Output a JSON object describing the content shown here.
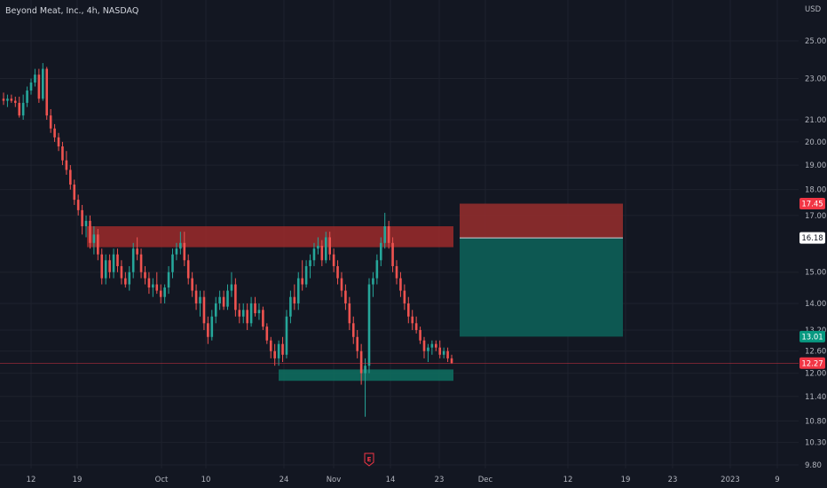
{
  "header": {
    "title": "Beyond Meat, Inc., 4h, NASDAQ",
    "currency": "USD"
  },
  "colors": {
    "up": "#26a69a",
    "down": "#ef5350",
    "background": "#131722",
    "zone_red": "#b71c1c",
    "zone_green": "#00796b",
    "badge_red": "#f23645",
    "badge_green": "#089981",
    "badge_white": "#ffffff"
  },
  "chart_data": {
    "type": "candlestick",
    "title": "Beyond Meat, Inc., 4h, NASDAQ",
    "y_scale": "log",
    "ylim": [
      9.7,
      28.5
    ],
    "y_ticks": [
      "25.00",
      "23.00",
      "21.00",
      "20.00",
      "19.00",
      "18.00",
      "17.00",
      "15.00",
      "14.00",
      "13.20",
      "12.60",
      "12.00",
      "11.40",
      "10.80",
      "10.30",
      "9.80"
    ],
    "x_ticks": [
      "12",
      "19",
      "Oct",
      "10",
      "24",
      "Nov",
      "14",
      "23",
      "Dec",
      "12",
      "19",
      "23",
      "2023",
      "9"
    ],
    "price_badges": [
      {
        "value": "17.45",
        "style": "red"
      },
      {
        "value": "16.18",
        "style": "white"
      },
      {
        "value": "13.01",
        "style": "green"
      },
      {
        "value": "12.27",
        "style": "red"
      }
    ],
    "last_price": 12.27,
    "earnings_marker": "E",
    "zones": [
      {
        "name": "resistance",
        "low": 15.85,
        "high": 16.6
      },
      {
        "name": "support",
        "low": 11.8,
        "high": 12.1
      },
      {
        "name": "stop",
        "low": 16.18,
        "high": 17.45
      },
      {
        "name": "target",
        "low": 13.01,
        "high": 16.18
      }
    ],
    "ohlc": [
      [
        22.0,
        22.3,
        21.7,
        21.9
      ],
      [
        21.9,
        22.2,
        21.6,
        22.0
      ],
      [
        22.0,
        22.2,
        21.8,
        21.9
      ],
      [
        21.9,
        22.1,
        21.6,
        21.8
      ],
      [
        21.8,
        22.1,
        21.1,
        21.2
      ],
      [
        21.2,
        22.2,
        21.0,
        21.8
      ],
      [
        21.8,
        22.6,
        21.6,
        22.4
      ],
      [
        22.4,
        23.0,
        22.2,
        22.8
      ],
      [
        22.8,
        23.5,
        22.6,
        23.2
      ],
      [
        23.2,
        23.5,
        21.8,
        22.0
      ],
      [
        22.0,
        23.8,
        21.9,
        23.5
      ],
      [
        23.5,
        23.6,
        21.0,
        21.2
      ],
      [
        21.2,
        21.5,
        20.4,
        20.6
      ],
      [
        20.6,
        20.8,
        20.0,
        20.2
      ],
      [
        20.2,
        20.4,
        19.6,
        19.8
      ],
      [
        19.8,
        20.0,
        19.0,
        19.2
      ],
      [
        19.2,
        19.6,
        18.6,
        18.8
      ],
      [
        18.8,
        19.0,
        18.0,
        18.2
      ],
      [
        18.2,
        18.4,
        17.4,
        17.6
      ],
      [
        17.6,
        17.8,
        17.0,
        17.2
      ],
      [
        17.2,
        17.4,
        16.3,
        16.6
      ],
      [
        16.6,
        17.0,
        16.2,
        16.8
      ],
      [
        16.8,
        17.0,
        15.8,
        16.0
      ],
      [
        16.0,
        16.6,
        15.6,
        16.3
      ],
      [
        16.3,
        16.5,
        15.4,
        15.6
      ],
      [
        15.6,
        15.8,
        14.6,
        14.8
      ],
      [
        14.8,
        15.6,
        14.6,
        15.4
      ],
      [
        15.4,
        15.6,
        14.8,
        15.0
      ],
      [
        15.0,
        15.8,
        14.8,
        15.6
      ],
      [
        15.6,
        15.8,
        15.0,
        15.2
      ],
      [
        15.2,
        15.4,
        14.6,
        14.8
      ],
      [
        14.8,
        15.0,
        14.5,
        14.6
      ],
      [
        14.6,
        15.2,
        14.4,
        15.0
      ],
      [
        15.0,
        16.0,
        14.8,
        15.8
      ],
      [
        15.8,
        16.2,
        15.4,
        15.6
      ],
      [
        15.6,
        15.8,
        14.8,
        15.0
      ],
      [
        15.0,
        15.2,
        14.6,
        14.8
      ],
      [
        14.8,
        15.0,
        14.3,
        14.5
      ],
      [
        14.5,
        14.8,
        14.2,
        14.6
      ],
      [
        14.6,
        15.0,
        14.3,
        14.4
      ],
      [
        14.4,
        14.6,
        14.0,
        14.2
      ],
      [
        14.2,
        14.6,
        14.0,
        14.5
      ],
      [
        14.5,
        15.2,
        14.3,
        15.0
      ],
      [
        15.0,
        15.8,
        14.8,
        15.6
      ],
      [
        15.6,
        16.0,
        15.4,
        15.8
      ],
      [
        15.8,
        16.4,
        15.6,
        16.0
      ],
      [
        16.0,
        16.4,
        15.2,
        15.4
      ],
      [
        15.4,
        15.6,
        14.6,
        14.8
      ],
      [
        14.8,
        15.0,
        14.2,
        14.4
      ],
      [
        14.4,
        14.6,
        13.8,
        14.0
      ],
      [
        14.0,
        14.4,
        13.6,
        14.2
      ],
      [
        14.2,
        14.4,
        13.2,
        13.4
      ],
      [
        13.4,
        13.6,
        12.8,
        13.0
      ],
      [
        13.0,
        13.8,
        12.9,
        13.6
      ],
      [
        13.6,
        14.2,
        13.4,
        14.0
      ],
      [
        14.0,
        14.4,
        13.8,
        14.2
      ],
      [
        14.2,
        14.4,
        13.8,
        13.9
      ],
      [
        13.9,
        14.6,
        13.8,
        14.4
      ],
      [
        14.4,
        15.0,
        14.2,
        14.6
      ],
      [
        14.6,
        14.8,
        13.6,
        13.8
      ],
      [
        13.8,
        14.0,
        13.4,
        13.6
      ],
      [
        13.6,
        14.0,
        13.4,
        13.8
      ],
      [
        13.8,
        14.0,
        13.2,
        13.4
      ],
      [
        13.4,
        14.2,
        13.3,
        14.0
      ],
      [
        14.0,
        14.2,
        13.6,
        13.7
      ],
      [
        13.7,
        14.0,
        13.5,
        13.8
      ],
      [
        13.8,
        13.9,
        13.2,
        13.3
      ],
      [
        13.3,
        13.4,
        12.8,
        12.9
      ],
      [
        12.9,
        13.0,
        12.4,
        12.6
      ],
      [
        12.6,
        12.8,
        12.2,
        12.4
      ],
      [
        12.4,
        12.9,
        12.2,
        12.8
      ],
      [
        12.8,
        13.0,
        12.3,
        12.5
      ],
      [
        12.5,
        13.8,
        12.4,
        13.6
      ],
      [
        13.6,
        14.4,
        13.4,
        14.2
      ],
      [
        14.2,
        14.6,
        13.8,
        14.0
      ],
      [
        14.0,
        15.0,
        13.8,
        14.8
      ],
      [
        14.8,
        15.4,
        14.4,
        14.6
      ],
      [
        14.6,
        15.4,
        14.5,
        15.2
      ],
      [
        15.2,
        15.6,
        14.8,
        15.4
      ],
      [
        15.4,
        16.0,
        15.2,
        15.8
      ],
      [
        15.8,
        16.2,
        15.6,
        15.9
      ],
      [
        15.9,
        16.1,
        15.2,
        15.4
      ],
      [
        15.4,
        16.4,
        15.3,
        16.2
      ],
      [
        16.2,
        16.4,
        15.4,
        15.6
      ],
      [
        15.6,
        15.8,
        15.0,
        15.2
      ],
      [
        15.2,
        15.4,
        14.6,
        14.8
      ],
      [
        14.8,
        15.0,
        14.2,
        14.4
      ],
      [
        14.4,
        14.6,
        13.8,
        14.0
      ],
      [
        14.0,
        14.2,
        13.2,
        13.4
      ],
      [
        13.4,
        13.6,
        12.8,
        13.0
      ],
      [
        13.0,
        13.2,
        12.4,
        12.6
      ],
      [
        12.6,
        12.8,
        11.7,
        12.0
      ],
      [
        12.0,
        12.4,
        10.9,
        12.2
      ],
      [
        12.2,
        14.8,
        12.0,
        14.6
      ],
      [
        14.6,
        15.0,
        14.2,
        14.8
      ],
      [
        14.8,
        15.6,
        14.6,
        15.4
      ],
      [
        15.4,
        16.2,
        15.2,
        16.0
      ],
      [
        16.0,
        17.1,
        15.8,
        16.6
      ],
      [
        16.6,
        16.8,
        15.8,
        16.0
      ],
      [
        16.0,
        16.2,
        15.0,
        15.2
      ],
      [
        15.2,
        15.4,
        14.6,
        14.8
      ],
      [
        14.8,
        15.0,
        14.2,
        14.4
      ],
      [
        14.4,
        14.6,
        13.8,
        14.0
      ],
      [
        14.0,
        14.2,
        13.4,
        13.6
      ],
      [
        13.6,
        13.8,
        13.2,
        13.4
      ],
      [
        13.4,
        13.6,
        13.1,
        13.2
      ],
      [
        13.2,
        13.3,
        12.8,
        12.9
      ],
      [
        12.9,
        13.0,
        12.4,
        12.6
      ],
      [
        12.6,
        12.8,
        12.3,
        12.7
      ],
      [
        12.7,
        12.9,
        12.5,
        12.8
      ],
      [
        12.8,
        12.9,
        12.6,
        12.7
      ],
      [
        12.7,
        12.9,
        12.4,
        12.5
      ],
      [
        12.5,
        12.7,
        12.4,
        12.6
      ],
      [
        12.6,
        12.7,
        12.3,
        12.4
      ],
      [
        12.4,
        12.5,
        12.25,
        12.27
      ]
    ]
  }
}
